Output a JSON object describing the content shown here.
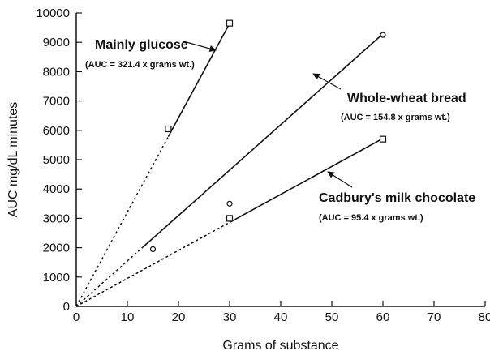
{
  "chart_data": {
    "type": "scatter",
    "title": "",
    "xlabel": "Grams of substance",
    "ylabel": "AUC mg/dL minutes",
    "xlim": [
      0,
      80
    ],
    "ylim": [
      0,
      10000
    ],
    "x_ticks": [
      0,
      10,
      20,
      30,
      40,
      50,
      60,
      70,
      80
    ],
    "x_tick_labels": [
      "0",
      "10",
      "20",
      "30",
      "40",
      "50",
      "60",
      "70",
      "80"
    ],
    "y_ticks": [
      0,
      1000,
      2000,
      3000,
      4000,
      5000,
      6000,
      7000,
      8000,
      9000,
      10000
    ],
    "y_tick_labels": [
      "0",
      "1000",
      "2000",
      "3000",
      "4000",
      "5000",
      "6000",
      "7000",
      "8000",
      "9000",
      "10000"
    ],
    "grid": false,
    "series": [
      {
        "name": "Mainly glucose",
        "annotation": "(AUC = 321.4 x grams wt.)",
        "marker": "square",
        "slope": 321.4,
        "points": [
          {
            "x": 18,
            "y": 6050
          },
          {
            "x": 30,
            "y": 9650
          }
        ],
        "solid_from_x": 18,
        "solid_to_x": 30
      },
      {
        "name": "Whole-wheat bread",
        "annotation": "(AUC = 154.8 x grams wt.)",
        "marker": "circle",
        "slope": 154.8,
        "points": [
          {
            "x": 15,
            "y": 1950
          },
          {
            "x": 30,
            "y": 3500
          },
          {
            "x": 60,
            "y": 9250
          }
        ],
        "solid_from_x": 13,
        "solid_to_x": 60
      },
      {
        "name": "Cadbury's milk chocolate",
        "annotation": "(AUC = 95.4 x grams wt.)",
        "marker": "square",
        "slope": 95.4,
        "points": [
          {
            "x": 30,
            "y": 3000
          },
          {
            "x": 60,
            "y": 5700
          }
        ],
        "solid_from_x": 30,
        "solid_to_x": 60
      }
    ]
  }
}
